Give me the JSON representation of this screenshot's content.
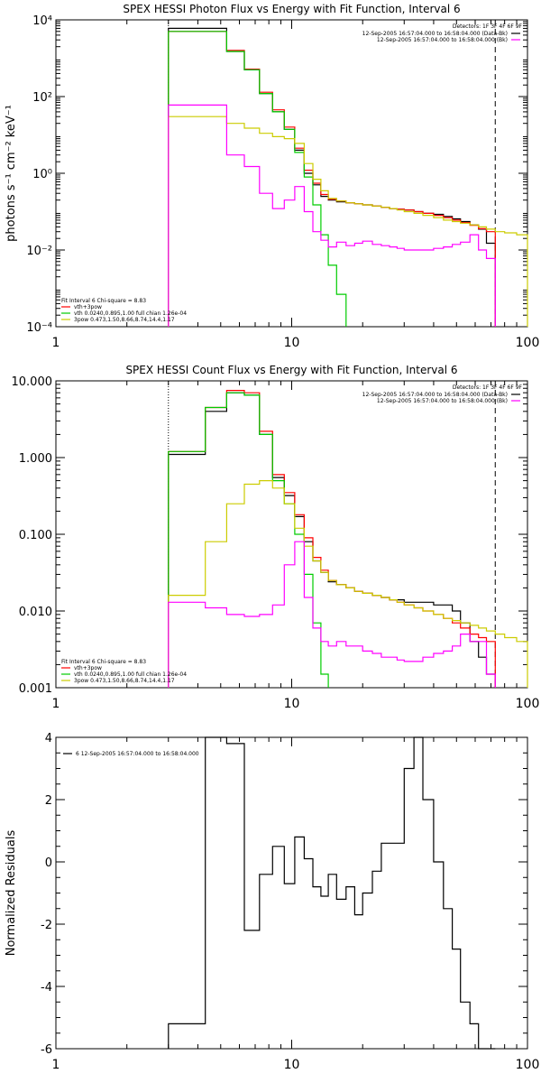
{
  "chart_data": [
    {
      "type": "line",
      "title": "SPEX HESSI Photon Flux vs Energy with Fit Function, Interval 6",
      "ylabel": "photons s⁻¹ cm⁻² keV⁻¹",
      "xlabel": "",
      "xscale": "log",
      "yscale": "log",
      "xlim": [
        1,
        100
      ],
      "ylim": [
        0.0001,
        10000
      ],
      "xticks": [
        "1",
        "10",
        "100"
      ],
      "yticks": [
        "10⁻⁴",
        "10⁻²",
        "10⁰",
        "10²",
        "10⁴"
      ],
      "dashed_vline_x": 73,
      "dotted_vline_x": 3.0,
      "detectors_text": "Detectors: 1F 3F 4F 6F 9F",
      "legend_top_right": [
        {
          "text": "12-Sep-2005 16:57:04.000 to 16:58:04.000 (Data-Bk)",
          "color": "#000000"
        },
        {
          "text": "12-Sep-2005 16:57:04.000 to 16:58:04.000 (Bk)",
          "color": "#ff00ff"
        }
      ],
      "legend_bottom_left": [
        {
          "text": "Fit Interval 6   Chi-square = 8.83",
          "color": "#000000"
        },
        {
          "text": "vth+3pow",
          "color": "#ff0000"
        },
        {
          "text": "vth 0.0240,0.895,1.00  full chian 1.26e-04",
          "color": "#00cc00"
        },
        {
          "text": "3pow 0.473,1.50,8.66,8.74,14.4,1.17",
          "color": "#cccc00"
        }
      ],
      "series": [
        {
          "color": "#000000",
          "edges": [
            3.0,
            4.3,
            5.3,
            6.3,
            7.3,
            8.3,
            9.3,
            10.3,
            11.3,
            12.3,
            13.3,
            14.3,
            15.5,
            17,
            18.5,
            20,
            22,
            24,
            26,
            28,
            30,
            33,
            36,
            40,
            44,
            48,
            52,
            57,
            62,
            67,
            73
          ],
          "values": [
            6000,
            6000,
            1500,
            500,
            120,
            40,
            14,
            4,
            1.0,
            0.5,
            0.25,
            0.2,
            0.18,
            0.17,
            0.16,
            0.15,
            0.14,
            0.13,
            0.12,
            0.115,
            0.11,
            0.1,
            0.09,
            0.085,
            0.075,
            0.065,
            0.055,
            0.045,
            0.035,
            0.015
          ]
        },
        {
          "color": "#ff0000",
          "edges": [
            3.0,
            4.3,
            5.3,
            6.3,
            7.3,
            8.3,
            9.3,
            10.3,
            11.3,
            12.3,
            13.3,
            14.3,
            15.5,
            17,
            18.5,
            20,
            22,
            24,
            26,
            28,
            30,
            33,
            36,
            40,
            44,
            48,
            52,
            57,
            62,
            67,
            73
          ],
          "values": [
            5000,
            5000,
            1600,
            520,
            130,
            45,
            16,
            4.5,
            1.2,
            0.55,
            0.28,
            0.21,
            0.19,
            0.17,
            0.16,
            0.15,
            0.14,
            0.13,
            0.12,
            0.115,
            0.11,
            0.1,
            0.09,
            0.08,
            0.07,
            0.06,
            0.052,
            0.044,
            0.036,
            0.03
          ]
        },
        {
          "color": "#00cc00",
          "edges": [
            3.0,
            4.3,
            5.3,
            6.3,
            7.3,
            8.3,
            9.3,
            10.3,
            11.3,
            12.3,
            13.3,
            14.3,
            15.5,
            17
          ],
          "values": [
            5000,
            5000,
            1500,
            500,
            120,
            40,
            14,
            3.5,
            0.8,
            0.15,
            0.025,
            0.004,
            0.0007
          ]
        },
        {
          "color": "#cccc00",
          "edges": [
            3.0,
            4.3,
            5.3,
            6.3,
            7.3,
            8.3,
            9.3,
            10.3,
            11.3,
            12.3,
            13.3,
            14.3,
            15.5,
            17,
            18.5,
            20,
            22,
            24,
            26,
            28,
            30,
            33,
            36,
            40,
            44,
            48,
            52,
            57,
            62,
            67,
            73,
            80,
            90,
            100
          ],
          "values": [
            30,
            30,
            20,
            15,
            11,
            9,
            8,
            6,
            1.8,
            0.7,
            0.35,
            0.22,
            0.19,
            0.17,
            0.16,
            0.15,
            0.14,
            0.13,
            0.12,
            0.11,
            0.1,
            0.09,
            0.08,
            0.07,
            0.06,
            0.055,
            0.05,
            0.045,
            0.04,
            0.035,
            0.03,
            0.028,
            0.025
          ]
        },
        {
          "color": "#ff00ff",
          "edges": [
            3.0,
            4.3,
            5.3,
            6.3,
            7.3,
            8.3,
            9.3,
            10.3,
            11.3,
            12.3,
            13.3,
            14.3,
            15.5,
            17,
            18.5,
            20,
            22,
            24,
            26,
            28,
            30,
            33,
            36,
            40,
            44,
            48,
            52,
            57,
            62,
            67,
            73
          ],
          "values": [
            60,
            60,
            3,
            1.5,
            0.3,
            0.12,
            0.2,
            0.45,
            0.1,
            0.03,
            0.018,
            0.012,
            0.016,
            0.013,
            0.015,
            0.017,
            0.014,
            0.013,
            0.012,
            0.011,
            0.01,
            0.01,
            0.01,
            0.011,
            0.012,
            0.014,
            0.016,
            0.025,
            0.01,
            0.006
          ]
        }
      ]
    },
    {
      "type": "line",
      "title": "SPEX HESSI Count Flux vs Energy with Fit Function, Interval 6",
      "xlabel": "",
      "ylabel": "",
      "xscale": "log",
      "yscale": "log",
      "xlim": [
        1,
        100
      ],
      "ylim": [
        0.001,
        10
      ],
      "xticks": [
        "1",
        "10",
        "100"
      ],
      "yticks": [
        "0.001",
        "0.010",
        "0.100",
        "1.000",
        "10.000"
      ],
      "dashed_vline_x": 73,
      "dotted_vline_x": 3.0,
      "detectors_text": "Detectors: 1F 3F 4F 6F 9F",
      "legend_top_right": [
        {
          "text": "12-Sep-2005 16:57:04.000 to 16:58:04.000 (Data-Bk)",
          "color": "#000000"
        },
        {
          "text": "12-Sep-2005 16:57:04.000 to 16:58:04.000 (Bk)",
          "color": "#ff00ff"
        }
      ],
      "legend_bottom_left": [
        {
          "text": "Fit Interval 6   Chi-square = 8.83",
          "color": "#000000"
        },
        {
          "text": "vth+3pow",
          "color": "#ff0000"
        },
        {
          "text": "vth 0.0240,0.895,1.00  full chian 1.26e-04",
          "color": "#00cc00"
        },
        {
          "text": "3pow 0.473,1.50,8.66,8.74,14.4,1.17",
          "color": "#cccc00"
        }
      ],
      "series": [
        {
          "color": "#000000",
          "edges": [
            3.0,
            4.3,
            5.3,
            6.3,
            7.3,
            8.3,
            9.3,
            10.3,
            11.3,
            12.3,
            13.3,
            14.3,
            15.5,
            17,
            18.5,
            20,
            22,
            24,
            26,
            28,
            30,
            33,
            36,
            40,
            44,
            48,
            52,
            57,
            62,
            67,
            73
          ],
          "values": [
            1.1,
            4.0,
            7.0,
            6.5,
            2.0,
            0.55,
            0.32,
            0.17,
            0.08,
            0.045,
            0.032,
            0.024,
            0.022,
            0.02,
            0.018,
            0.017,
            0.016,
            0.015,
            0.014,
            0.014,
            0.013,
            0.013,
            0.013,
            0.012,
            0.012,
            0.01,
            0.007,
            0.004,
            0.0025,
            0.0015
          ]
        },
        {
          "color": "#ff0000",
          "edges": [
            3.0,
            4.3,
            5.3,
            6.3,
            7.3,
            8.3,
            9.3,
            10.3,
            11.3,
            12.3,
            13.3,
            14.3,
            15.5,
            17,
            18.5,
            20,
            22,
            24,
            26,
            28,
            30,
            33,
            36,
            40,
            44,
            48,
            52,
            57,
            62,
            67,
            73
          ],
          "values": [
            1.2,
            4.5,
            7.5,
            7.0,
            2.2,
            0.6,
            0.35,
            0.18,
            0.09,
            0.05,
            0.034,
            0.025,
            0.022,
            0.02,
            0.018,
            0.017,
            0.016,
            0.015,
            0.014,
            0.013,
            0.012,
            0.011,
            0.01,
            0.009,
            0.008,
            0.007,
            0.006,
            0.005,
            0.0045,
            0.004
          ]
        },
        {
          "color": "#00cc00",
          "edges": [
            3.0,
            4.3,
            5.3,
            6.3,
            7.3,
            8.3,
            9.3,
            10.3,
            11.3,
            12.3,
            13.3,
            14.3
          ],
          "values": [
            1.2,
            4.5,
            7.0,
            6.5,
            2.0,
            0.5,
            0.25,
            0.1,
            0.03,
            0.007,
            0.0015
          ]
        },
        {
          "color": "#cccc00",
          "edges": [
            3.0,
            4.3,
            5.3,
            6.3,
            7.3,
            8.3,
            9.3,
            10.3,
            11.3,
            12.3,
            13.3,
            14.3,
            15.5,
            17,
            18.5,
            20,
            22,
            24,
            26,
            28,
            30,
            33,
            36,
            40,
            44,
            48,
            52,
            57,
            62,
            67,
            73,
            80,
            90,
            100
          ],
          "values": [
            0.016,
            0.08,
            0.25,
            0.45,
            0.5,
            0.4,
            0.25,
            0.12,
            0.07,
            0.045,
            0.032,
            0.025,
            0.022,
            0.02,
            0.018,
            0.017,
            0.016,
            0.015,
            0.014,
            0.013,
            0.012,
            0.011,
            0.01,
            0.009,
            0.008,
            0.0075,
            0.007,
            0.0065,
            0.006,
            0.0055,
            0.005,
            0.0045,
            0.004
          ]
        },
        {
          "color": "#ff00ff",
          "edges": [
            3.0,
            4.3,
            5.3,
            6.3,
            7.3,
            8.3,
            9.3,
            10.3,
            11.3,
            12.3,
            13.3,
            14.3,
            15.5,
            17,
            18.5,
            20,
            22,
            24,
            26,
            28,
            30,
            33,
            36,
            40,
            44,
            48,
            52,
            57,
            62,
            67,
            73
          ],
          "values": [
            0.013,
            0.011,
            0.009,
            0.0085,
            0.009,
            0.012,
            0.04,
            0.08,
            0.015,
            0.006,
            0.004,
            0.0035,
            0.004,
            0.0035,
            0.0035,
            0.003,
            0.0028,
            0.0025,
            0.0025,
            0.0023,
            0.0022,
            0.0022,
            0.0025,
            0.0028,
            0.003,
            0.0035,
            0.005,
            0.004,
            0.004,
            0.0015
          ]
        }
      ]
    },
    {
      "type": "line",
      "title": "",
      "ylabel": "Normalized Residuals",
      "xlabel": "",
      "xscale": "log",
      "yscale": "linear",
      "xlim": [
        1,
        100
      ],
      "ylim": [
        -6,
        4
      ],
      "xticks": [
        "1",
        "10",
        "100"
      ],
      "yticks": [
        "-6",
        "-4",
        "-2",
        "0",
        "2",
        "4"
      ],
      "legend": [
        {
          "text": "6  12-Sep-2005 16:57:04.000 to 16:58:04.000",
          "color": "#000000"
        }
      ],
      "series": [
        {
          "color": "#000000",
          "edges": [
            3.0,
            4.3,
            5.3,
            6.3,
            7.3,
            8.3,
            9.3,
            10.3,
            11.3,
            12.3,
            13.3,
            14.3,
            15.5,
            17,
            18.5,
            20,
            22,
            24,
            26,
            28,
            30,
            33,
            36,
            40,
            44,
            48,
            52,
            57,
            62,
            67,
            73
          ],
          "values": [
            -5.2,
            4.0,
            3.8,
            -2.2,
            -0.4,
            0.5,
            -0.7,
            0.8,
            0.1,
            -0.8,
            -1.1,
            -0.4,
            -1.2,
            -0.8,
            -1.7,
            -1.0,
            -0.3,
            0.6,
            0.6,
            0.6,
            3.0,
            4.0,
            2.0,
            0.0,
            -1.5,
            -2.8,
            -4.5,
            -5.2,
            -6.0,
            -6.0
          ]
        }
      ]
    }
  ]
}
